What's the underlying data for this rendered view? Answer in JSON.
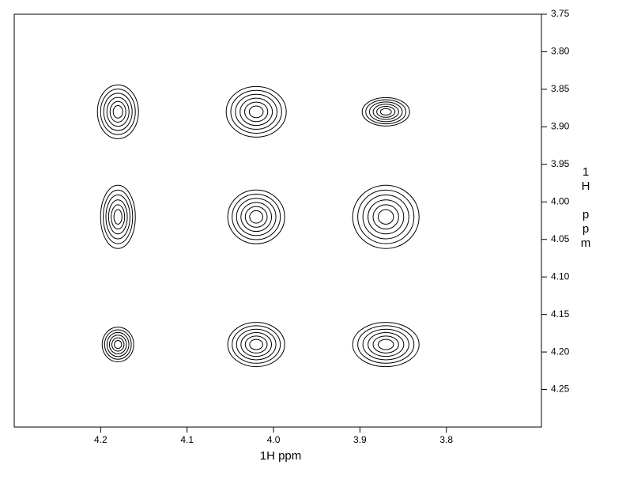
{
  "chart_data": {
    "type": "contour",
    "x_label": "1H ppm",
    "y_label": "1H ppm",
    "xlim": [
      4.3,
      3.69
    ],
    "ylim": [
      3.75,
      4.3
    ],
    "xticks": [
      4.2,
      4.1,
      {
        "value": 4.0,
        "label": "4.0"
      },
      3.9,
      3.8
    ],
    "yticks": [
      3.75,
      {
        "value": 3.8,
        "label": "3.80"
      },
      3.85,
      {
        "value": 3.9,
        "label": "3.90"
      },
      3.95,
      {
        "value": 4.0,
        "label": "4.00"
      },
      4.05,
      {
        "value": 4.1,
        "label": "4.10"
      },
      4.15,
      {
        "value": 4.2,
        "label": "4.20"
      },
      4.25
    ],
    "peaks": {
      "x": [
        4.18,
        4.02,
        3.87,
        4.18,
        4.02,
        3.87,
        4.18,
        4.02,
        3.87
      ],
      "y": [
        3.88,
        3.88,
        3.88,
        4.02,
        4.02,
        4.02,
        4.19,
        4.19,
        4.19
      ]
    },
    "color": "#000000"
  }
}
